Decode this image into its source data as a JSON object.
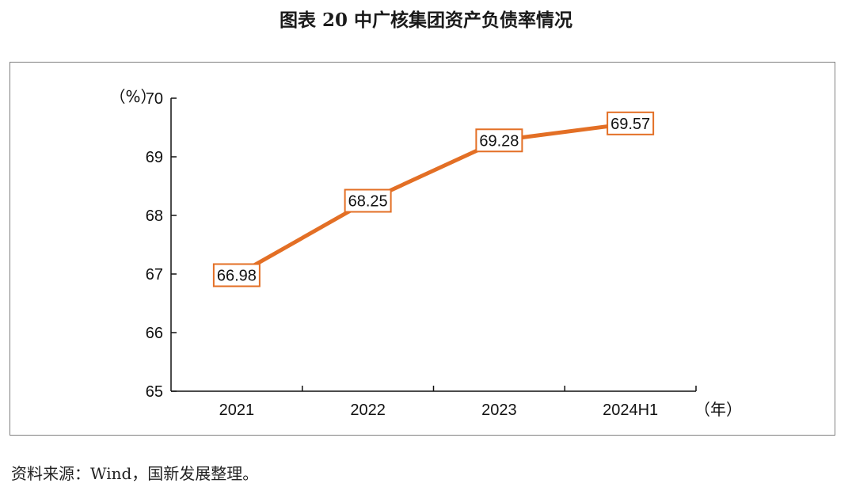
{
  "title": "图表 20  中广核集团资产负债率情况",
  "source": "资料来源：Wind，国新发展整理。",
  "colors": {
    "line": "#e36f25",
    "label_border": "#e36f25",
    "axis": "#111111"
  },
  "chart_data": {
    "type": "line",
    "title": "图表 20  中广核集团资产负债率情况",
    "categories": [
      "2021",
      "2022",
      "2023",
      "2024H1"
    ],
    "series": [
      {
        "values": [
          66.98,
          68.25,
          69.28,
          69.57
        ]
      }
    ],
    "data_labels": [
      "66.98",
      "68.25",
      "69.28",
      "69.57"
    ],
    "y_ticks": [
      "65",
      "66",
      "67",
      "68",
      "69",
      "70"
    ],
    "ylim": [
      65,
      70
    ],
    "y_unit": "（%）",
    "x_unit": "（年）",
    "grid": false,
    "legend": "none"
  }
}
